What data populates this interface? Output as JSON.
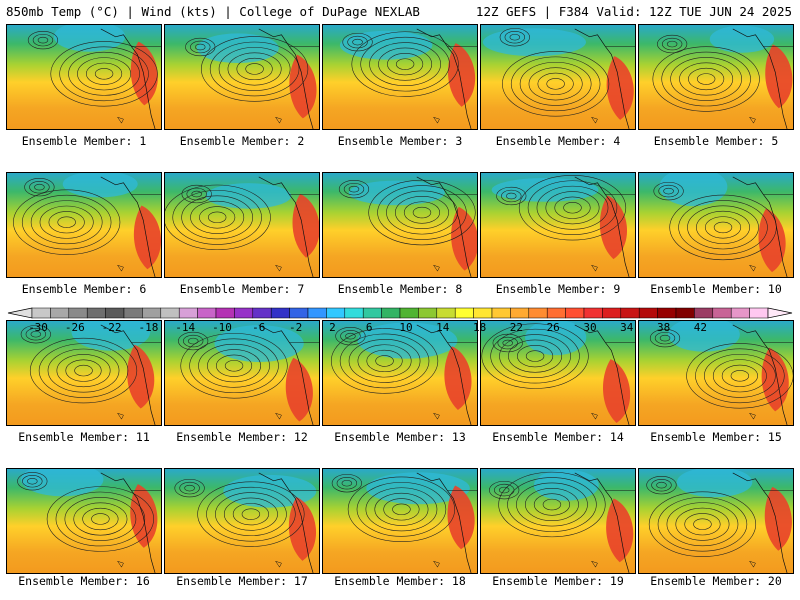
{
  "header": {
    "left": "850mb Temp (°C) | Wind (kts) | College of DuPage NEXLAB",
    "right": "12Z GEFS | F384 Valid: 12Z TUE JUN 24 2025"
  },
  "members": [
    "Ensemble Member: 1",
    "Ensemble Member: 2",
    "Ensemble Member: 3",
    "Ensemble Member: 4",
    "Ensemble Member: 5",
    "Ensemble Member: 6",
    "Ensemble Member: 7",
    "Ensemble Member: 8",
    "Ensemble Member: 9",
    "Ensemble Member: 10",
    "Ensemble Member: 11",
    "Ensemble Member: 12",
    "Ensemble Member: 13",
    "Ensemble Member: 14",
    "Ensemble Member: 15",
    "Ensemble Member: 16",
    "Ensemble Member: 17",
    "Ensemble Member: 18",
    "Ensemble Member: 19",
    "Ensemble Member: 20"
  ],
  "colorbar": {
    "labels": [
      "-30",
      "-26",
      "-22",
      "-18",
      "-14",
      "-10",
      "-6",
      "-2",
      "2",
      "6",
      "10",
      "14",
      "18",
      "22",
      "26",
      "30",
      "34",
      "38",
      "42"
    ],
    "colors": [
      "#c8c8c8",
      "#a8a8a8",
      "#8a8a8a",
      "#6e6e6e",
      "#5a5a5a",
      "#7a7a7a",
      "#a0a0a0",
      "#c0c0c0",
      "#d7a0d7",
      "#c864c8",
      "#b432b4",
      "#9632c8",
      "#6432c8",
      "#3232c8",
      "#3264e6",
      "#3296ff",
      "#32c8ff",
      "#32dcdc",
      "#32c8a0",
      "#32b464",
      "#50b432",
      "#8cc832",
      "#c8dc32",
      "#ffff32",
      "#ffe632",
      "#ffc832",
      "#ffaa32",
      "#ff8c32",
      "#ff6e32",
      "#ff5032",
      "#f03232",
      "#dc1e1e",
      "#c81414",
      "#b40a0a",
      "#960000",
      "#800000",
      "#9b3c64",
      "#c86496",
      "#e696c8",
      "#ffc8f0"
    ]
  }
}
